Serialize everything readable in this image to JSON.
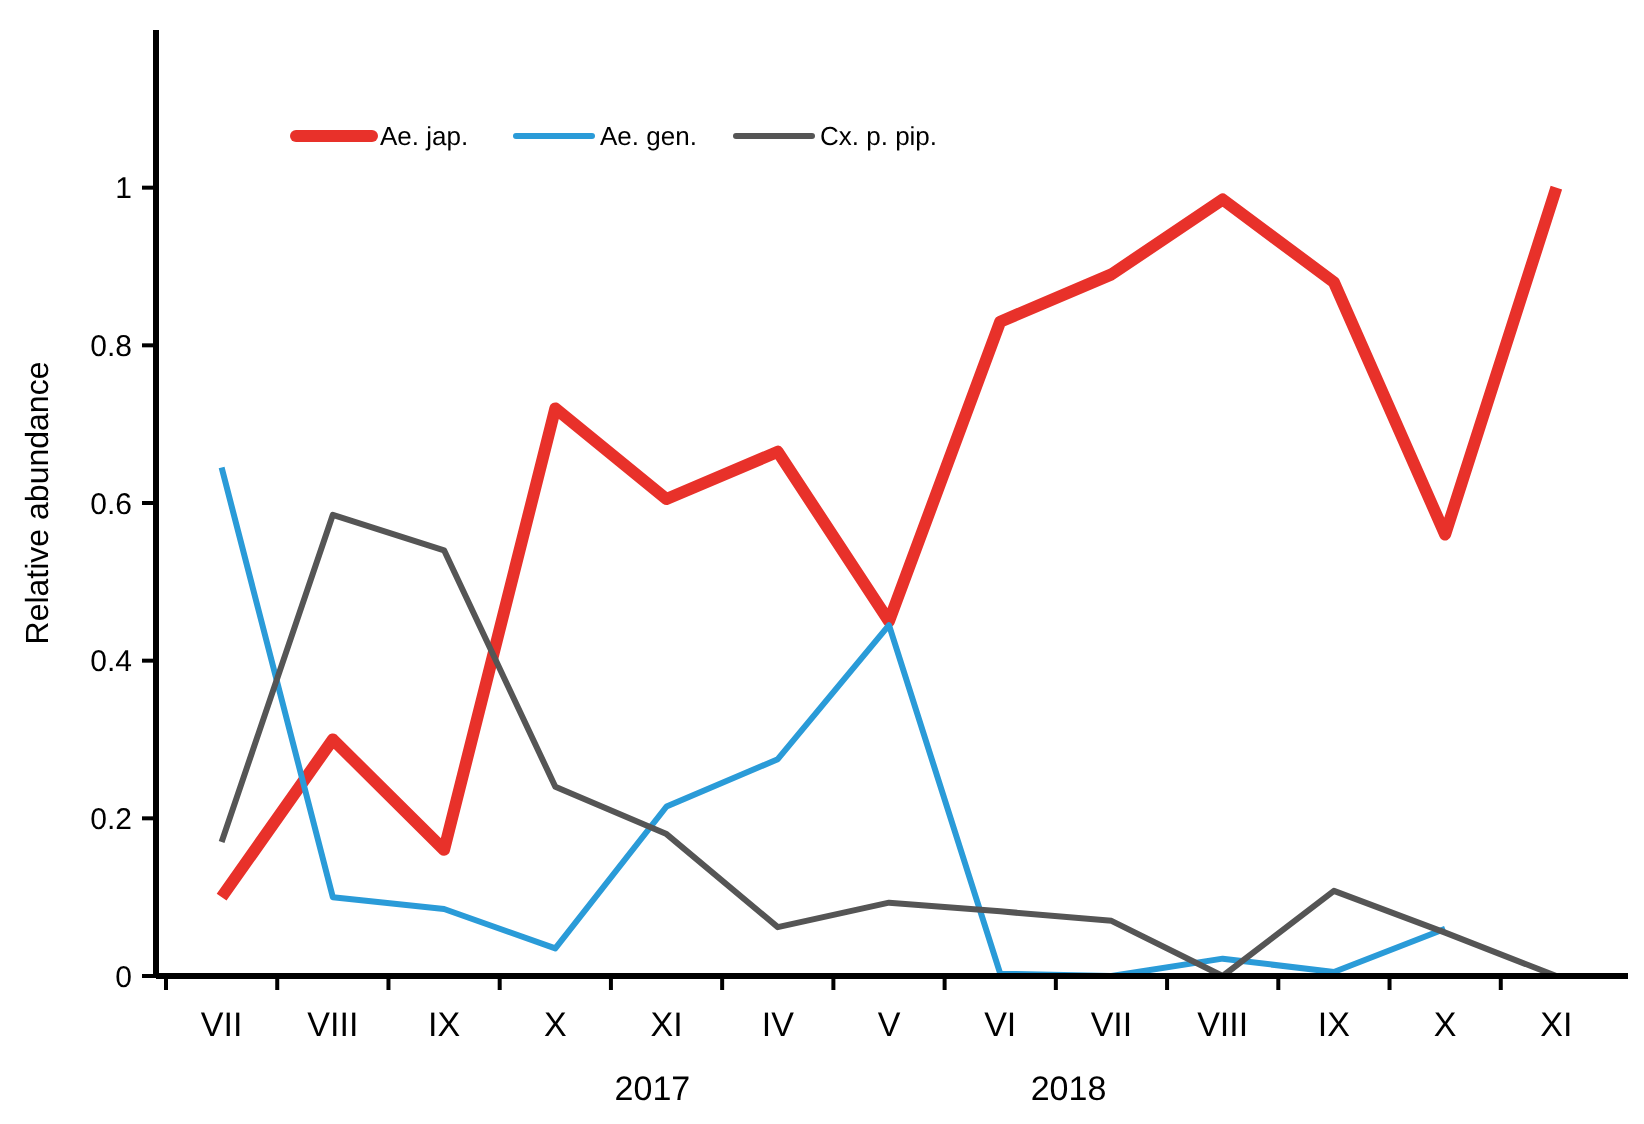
{
  "chart_data": {
    "type": "line",
    "ylabel": "Relative abundance",
    "categories": [
      "VII",
      "VIII",
      "IX",
      "X",
      "XI",
      "IV",
      "V",
      "VI",
      "VII",
      "VIII",
      "IX",
      "X",
      "XI"
    ],
    "series": [
      {
        "name": "Ae. jap.",
        "color": "#e8312a",
        "values": [
          0.1,
          0.3,
          0.16,
          0.72,
          0.605,
          0.665,
          0.45,
          0.83,
          0.89,
          0.985,
          0.88,
          0.56,
          1.0
        ]
      },
      {
        "name": "Ae. gen.",
        "color": "#2a9bd8",
        "values": [
          0.645,
          0.1,
          0.085,
          0.035,
          0.215,
          0.275,
          0.445,
          0.003,
          0,
          0.022,
          0.005,
          0.06,
          null
        ]
      },
      {
        "name": "Cx. p. pip.",
        "color": "#555555",
        "values": [
          0.17,
          0.585,
          0.54,
          0.24,
          0.18,
          0.062,
          0.093,
          0.082,
          0.07,
          0,
          0.108,
          0.055,
          0
        ]
      }
    ],
    "ylim": [
      0,
      1.2
    ],
    "yticks": [
      0,
      0.2,
      0.4,
      0.6,
      0.8,
      1
    ],
    "annotations": [
      "2017",
      "2018"
    ],
    "legend": "top left",
    "grid": false,
    "line_style": "solid"
  }
}
